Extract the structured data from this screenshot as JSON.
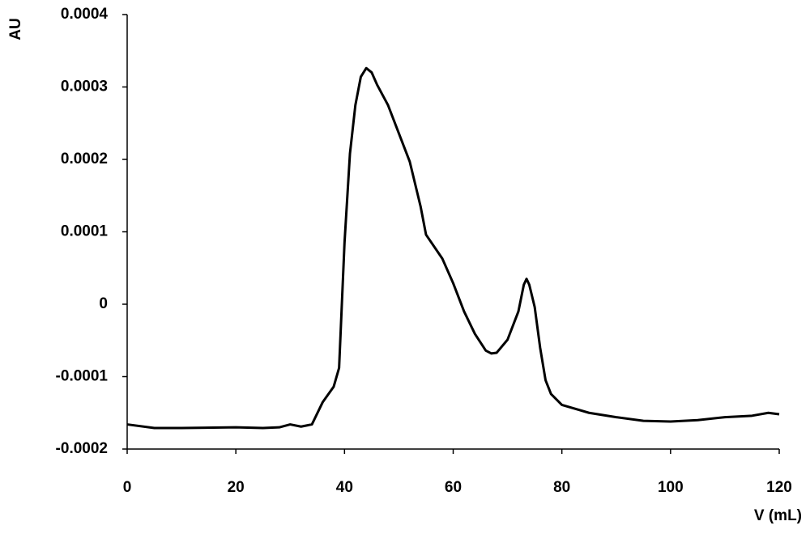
{
  "chart_data": {
    "type": "line",
    "x_label": "V (mL)",
    "y_label": "AU",
    "x": [
      0,
      5,
      10,
      20,
      25,
      28,
      30,
      32,
      34,
      36,
      38,
      39,
      40,
      41,
      42,
      43,
      44,
      45,
      46,
      48,
      50,
      52,
      54,
      55,
      58,
      60,
      62,
      64,
      66,
      67,
      68,
      70,
      72,
      73,
      73.5,
      74,
      75,
      76,
      77,
      78,
      80,
      85,
      90,
      95,
      100,
      105,
      110,
      115,
      118,
      120
    ],
    "series": [
      {
        "color": "#000000",
        "values": [
          -0.000166,
          -0.000171,
          -0.000171,
          -0.00017,
          -0.000171,
          -0.00017,
          -0.000166,
          -0.000169,
          -0.000166,
          -0.000135,
          -0.000114,
          -8.8e-05,
          8.5e-05,
          0.000208,
          0.000275,
          0.000314,
          0.000326,
          0.00032,
          0.000303,
          0.000275,
          0.000236,
          0.000197,
          0.000135,
          9.6e-05,
          6.3e-05,
          2.9e-05,
          -1e-05,
          -4.1e-05,
          -6.4e-05,
          -6.8e-05,
          -6.7e-05,
          -4.9e-05,
          -1e-05,
          2.7e-05,
          3.5e-05,
          2.7e-05,
          -4e-06,
          -6e-05,
          -0.000105,
          -0.000124,
          -0.000139,
          -0.00015,
          -0.000156,
          -0.000161,
          -0.000162,
          -0.00016,
          -0.000156,
          -0.000154,
          -0.00015,
          -0.000152
        ]
      }
    ],
    "xlim": [
      0,
      120
    ],
    "xticks": [
      0,
      20,
      40,
      60,
      80,
      100,
      120
    ],
    "ylim": [
      -0.0002,
      0.0004
    ],
    "yticks": [
      -0.0002,
      -0.0001,
      0,
      0.0001,
      0.0002,
      0.0003,
      0.0004
    ],
    "grid": false
  }
}
